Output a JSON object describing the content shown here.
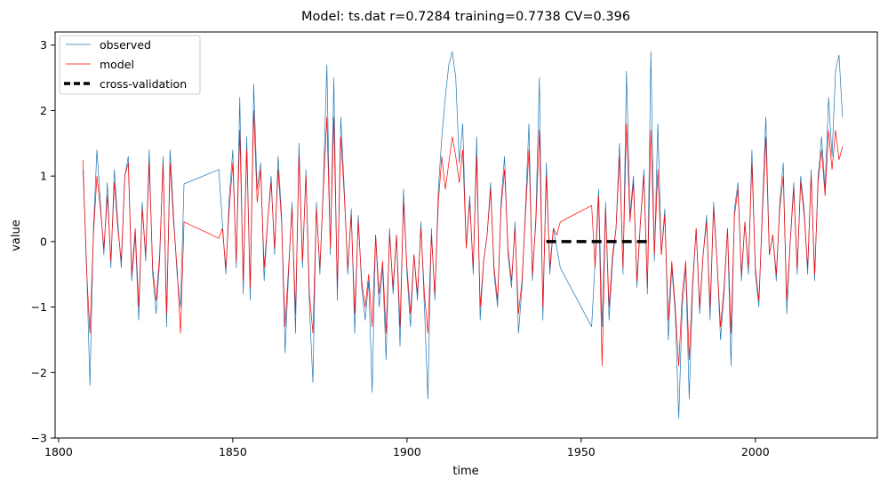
{
  "chart_data": {
    "type": "line",
    "title": "Model: ts.dat  r=0.7284  training=0.7738  CV=0.396",
    "xlabel": "time",
    "ylabel": "value",
    "xlim": [
      1799,
      2035
    ],
    "ylim": [
      -3,
      3.2
    ],
    "xticks": [
      1800,
      1850,
      1900,
      1950,
      2000
    ],
    "yticks": [
      -3,
      -2,
      -1,
      0,
      1,
      2,
      3
    ],
    "legend_position": "top-left",
    "colors": {
      "observed": "#1f77b4",
      "model": "#ff0000",
      "cv": "#000000"
    },
    "series": [
      {
        "name": "observed",
        "x": [
          1807,
          1808,
          1809,
          1810,
          1811,
          1812,
          1813,
          1814,
          1815,
          1816,
          1817,
          1818,
          1819,
          1820,
          1821,
          1822,
          1823,
          1824,
          1825,
          1826,
          1827,
          1828,
          1829,
          1830,
          1831,
          1832,
          1833,
          1834,
          1835,
          1836,
          1846,
          1847,
          1848,
          1849,
          1850,
          1851,
          1852,
          1853,
          1854,
          1855,
          1856,
          1857,
          1858,
          1859,
          1860,
          1861,
          1862,
          1863,
          1864,
          1865,
          1866,
          1867,
          1868,
          1869,
          1870,
          1871,
          1872,
          1873,
          1874,
          1875,
          1876,
          1877,
          1878,
          1879,
          1880,
          1881,
          1882,
          1883,
          1884,
          1885,
          1886,
          1887,
          1888,
          1889,
          1890,
          1891,
          1892,
          1893,
          1894,
          1895,
          1896,
          1897,
          1898,
          1899,
          1900,
          1901,
          1902,
          1903,
          1904,
          1905,
          1906,
          1907,
          1908,
          1909,
          1910,
          1911,
          1912,
          1913,
          1914,
          1915,
          1916,
          1917,
          1918,
          1919,
          1920,
          1921,
          1922,
          1923,
          1924,
          1925,
          1926,
          1927,
          1928,
          1929,
          1930,
          1931,
          1932,
          1933,
          1934,
          1935,
          1936,
          1937,
          1938,
          1939,
          1940,
          1941,
          1942,
          1943,
          1944,
          1953,
          1954,
          1955,
          1956,
          1957,
          1958,
          1959,
          1960,
          1961,
          1962,
          1963,
          1964,
          1965,
          1966,
          1967,
          1968,
          1969,
          1970,
          1971,
          1972,
          1973,
          1974,
          1975,
          1976,
          1977,
          1978,
          1979,
          1980,
          1981,
          1982,
          1983,
          1984,
          1985,
          1986,
          1987,
          1988,
          1989,
          1990,
          1991,
          1992,
          1993,
          1994,
          1995,
          1996,
          1997,
          1998,
          1999,
          2000,
          2001,
          2002,
          2003,
          2004,
          2005,
          2006,
          2007,
          2008,
          2009,
          2010,
          2011,
          2012,
          2013,
          2014,
          2015,
          2016,
          2017,
          2018,
          2019,
          2020,
          2021,
          2022,
          2023,
          2024,
          2025
        ],
        "values": [
          1.1,
          -0.3,
          -2.2,
          0.2,
          1.4,
          0.6,
          -0.2,
          0.9,
          -0.4,
          1.1,
          0.3,
          -0.4,
          1.0,
          1.3,
          -0.6,
          0.1,
          -1.2,
          0.6,
          -0.3,
          1.4,
          -0.5,
          -1.1,
          -0.3,
          1.3,
          -1.3,
          1.4,
          0.4,
          -0.5,
          -1.0,
          0.88,
          1.1,
          0.3,
          -0.5,
          0.7,
          1.4,
          -0.4,
          2.2,
          -0.8,
          1.6,
          -0.9,
          2.4,
          0.8,
          1.2,
          -0.6,
          0.3,
          1.0,
          -0.2,
          1.3,
          0.4,
          -1.7,
          -0.5,
          0.6,
          -1.4,
          1.5,
          -0.4,
          1.1,
          -1.0,
          -2.15,
          0.6,
          -0.5,
          0.9,
          2.7,
          -0.2,
          2.5,
          -0.9,
          1.9,
          0.8,
          -0.5,
          0.5,
          -1.4,
          0.4,
          -0.7,
          -1.2,
          -0.6,
          -2.3,
          0.1,
          -1.0,
          -0.4,
          -1.8,
          0.2,
          -0.8,
          0.1,
          -1.6,
          0.8,
          -0.5,
          -1.3,
          -0.2,
          -0.9,
          0.3,
          -1.0,
          -2.4,
          0.2,
          -0.9,
          0.8,
          1.6,
          2.2,
          2.7,
          2.9,
          2.5,
          1.2,
          1.8,
          -0.1,
          0.7,
          -0.5,
          1.6,
          -1.2,
          -0.3,
          0.1,
          0.9,
          -0.5,
          -1.0,
          0.6,
          1.3,
          -0.2,
          -0.7,
          0.3,
          -1.4,
          -0.7,
          0.5,
          1.8,
          -0.6,
          0.4,
          2.5,
          -1.2,
          1.2,
          -0.5,
          0.2,
          -0.1,
          -0.4,
          -1.3,
          -0.3,
          0.8,
          -1.3,
          0.6,
          -1.2,
          -0.3,
          0.2,
          1.5,
          -0.5,
          2.6,
          0.4,
          1.0,
          -0.7,
          0.3,
          1.1,
          -0.8,
          2.9,
          -0.3,
          1.8,
          -0.2,
          0.5,
          -1.5,
          -0.4,
          -1.1,
          -2.7,
          -1.0,
          -0.4,
          -2.4,
          -0.7,
          0.2,
          -1.1,
          -0.2,
          0.4,
          -1.2,
          0.6,
          -0.3,
          -1.5,
          -0.8,
          0.2,
          -1.9,
          0.5,
          0.9,
          -0.6,
          0.3,
          -0.5,
          1.4,
          -0.5,
          -1.0,
          0.5,
          1.9,
          -0.2,
          0.1,
          -0.6,
          0.6,
          1.2,
          -1.1,
          0.0,
          0.9,
          -0.5,
          1.0,
          0.5,
          -0.5,
          1.1,
          -0.6,
          1.0,
          1.6,
          0.8,
          2.2,
          1.3,
          2.6,
          2.85,
          1.9
        ]
      },
      {
        "name": "model",
        "x": [
          1807,
          1808,
          1809,
          1810,
          1811,
          1812,
          1813,
          1814,
          1815,
          1816,
          1817,
          1818,
          1819,
          1820,
          1821,
          1822,
          1823,
          1824,
          1825,
          1826,
          1827,
          1828,
          1829,
          1830,
          1831,
          1832,
          1833,
          1834,
          1835,
          1836,
          1846,
          1847,
          1848,
          1849,
          1850,
          1851,
          1852,
          1853,
          1854,
          1855,
          1856,
          1857,
          1858,
          1859,
          1860,
          1861,
          1862,
          1863,
          1864,
          1865,
          1866,
          1867,
          1868,
          1869,
          1870,
          1871,
          1872,
          1873,
          1874,
          1875,
          1876,
          1877,
          1878,
          1879,
          1880,
          1881,
          1882,
          1883,
          1884,
          1885,
          1886,
          1887,
          1888,
          1889,
          1890,
          1891,
          1892,
          1893,
          1894,
          1895,
          1896,
          1897,
          1898,
          1899,
          1900,
          1901,
          1902,
          1903,
          1904,
          1905,
          1906,
          1907,
          1908,
          1909,
          1910,
          1911,
          1912,
          1913,
          1914,
          1915,
          1916,
          1917,
          1918,
          1919,
          1920,
          1921,
          1922,
          1923,
          1924,
          1925,
          1926,
          1927,
          1928,
          1929,
          1930,
          1931,
          1932,
          1933,
          1934,
          1935,
          1936,
          1937,
          1938,
          1939,
          1940,
          1941,
          1942,
          1943,
          1944,
          1953,
          1954,
          1955,
          1956,
          1957,
          1958,
          1959,
          1960,
          1961,
          1962,
          1963,
          1964,
          1965,
          1966,
          1967,
          1968,
          1969,
          1970,
          1971,
          1972,
          1973,
          1974,
          1975,
          1976,
          1977,
          1978,
          1979,
          1980,
          1981,
          1982,
          1983,
          1984,
          1985,
          1986,
          1987,
          1988,
          1989,
          1990,
          1991,
          1992,
          1993,
          1994,
          1995,
          1996,
          1997,
          1998,
          1999,
          2000,
          2001,
          2002,
          2003,
          2004,
          2005,
          2006,
          2007,
          2008,
          2009,
          2010,
          2011,
          2012,
          2013,
          2014,
          2015,
          2016,
          2017,
          2018,
          2019,
          2020,
          2021,
          2022,
          2023,
          2024,
          2025
        ],
        "values": [
          1.25,
          -0.4,
          -1.4,
          0.1,
          1.0,
          0.5,
          -0.1,
          0.7,
          -0.3,
          0.9,
          0.2,
          -0.3,
          1.0,
          1.2,
          -0.5,
          0.2,
          -1.0,
          0.5,
          -0.2,
          1.2,
          -0.4,
          -0.9,
          -0.2,
          1.2,
          -1.1,
          1.2,
          0.3,
          -0.4,
          -1.4,
          0.3,
          0.05,
          0.2,
          -0.4,
          0.5,
          1.2,
          -0.3,
          1.7,
          -0.6,
          1.4,
          -0.7,
          2.0,
          0.6,
          1.1,
          -0.4,
          0.3,
          0.9,
          -0.1,
          1.1,
          0.3,
          -1.3,
          -0.4,
          0.5,
          -1.1,
          1.3,
          -0.3,
          1.0,
          -0.8,
          -1.4,
          0.5,
          -0.4,
          0.8,
          1.9,
          -0.1,
          1.9,
          -0.7,
          1.6,
          0.7,
          -0.4,
          0.4,
          -1.1,
          0.3,
          -0.6,
          -1.0,
          -0.5,
          -1.3,
          0.1,
          -0.8,
          -0.3,
          -1.4,
          0.1,
          -0.7,
          0.1,
          -1.3,
          0.6,
          -0.4,
          -1.1,
          -0.2,
          -0.8,
          0.2,
          -0.8,
          -1.4,
          0.1,
          -0.8,
          0.6,
          1.3,
          0.8,
          1.2,
          1.6,
          1.3,
          0.9,
          1.4,
          -0.1,
          0.6,
          -0.4,
          1.3,
          -1.0,
          -0.3,
          0.1,
          0.8,
          -0.4,
          -0.9,
          0.5,
          1.1,
          -0.1,
          -0.6,
          0.2,
          -1.1,
          -0.6,
          0.4,
          1.4,
          -0.5,
          0.3,
          1.7,
          -1.0,
          1.0,
          -0.4,
          0.2,
          0.1,
          0.3,
          0.55,
          -0.4,
          0.7,
          -1.9,
          0.5,
          -1.0,
          -0.2,
          0.2,
          1.3,
          -0.4,
          1.8,
          0.3,
          0.9,
          -0.6,
          0.3,
          1.0,
          -0.7,
          1.7,
          -0.2,
          1.1,
          -0.2,
          0.4,
          -1.2,
          -0.3,
          -1.0,
          -1.9,
          -0.8,
          -0.3,
          -1.8,
          -0.6,
          0.2,
          -1.0,
          -0.2,
          0.3,
          -1.0,
          0.5,
          -0.3,
          -1.3,
          -0.7,
          0.2,
          -1.4,
          0.4,
          0.8,
          -0.5,
          0.3,
          -0.4,
          1.2,
          -0.4,
          -0.9,
          0.4,
          1.6,
          -0.2,
          0.1,
          -0.5,
          0.5,
          1.0,
          -0.9,
          0.0,
          0.8,
          -0.4,
          0.9,
          0.4,
          -0.4,
          1.0,
          -0.5,
          0.9,
          1.4,
          0.7,
          1.7,
          1.1,
          1.7,
          1.25,
          1.45
        ]
      },
      {
        "name": "cross-validation",
        "x": [
          1940,
          1970
        ],
        "values": [
          0,
          0
        ]
      }
    ]
  }
}
